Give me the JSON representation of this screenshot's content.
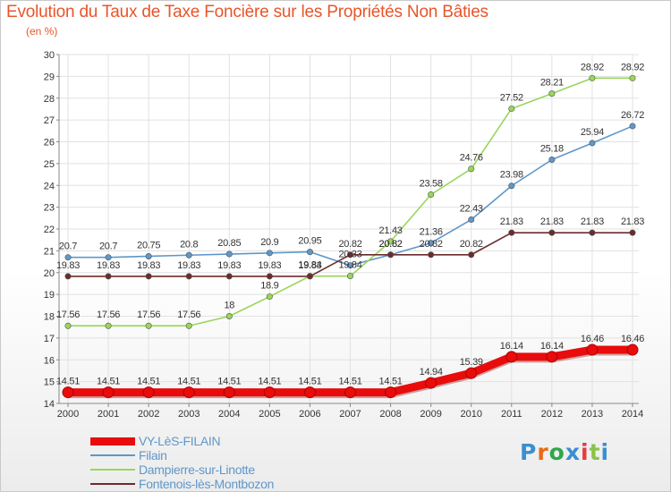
{
  "title": "Evolution du Taux de Taxe Foncière sur les Propriétés Non Bâties",
  "subtitle": "(en %)",
  "logo": {
    "text": "Proxiti",
    "colors": [
      "#3a8fd0",
      "#e86a1a",
      "#2fa64a",
      "#3a8fd0",
      "#e83a3a",
      "#8bc34a",
      "#3a8fd0"
    ]
  },
  "colors": {
    "title": "#e8552a",
    "grid": "#e1e1e1",
    "axis": "#888888",
    "label": "#333333"
  },
  "legend": [
    {
      "name": "VY-LèS-FILAIN",
      "color": "#e80c0c"
    },
    {
      "name": "Filain",
      "color": "#5f97c9"
    },
    {
      "name": "Dampierre-sur-Linotte",
      "color": "#99d65a"
    },
    {
      "name": "Fontenois-lès-Montbozon",
      "color": "#6b2c2c"
    }
  ],
  "chart_data": {
    "type": "line",
    "title": "Evolution du Taux de Taxe Foncière sur les Propriétés Non Bâties",
    "ylabel": "(en %)",
    "xlabel": "",
    "x": [
      "2000",
      "2001",
      "2002",
      "2003",
      "2004",
      "2005",
      "2006",
      "2007",
      "2008",
      "2009",
      "2010",
      "2011",
      "2012",
      "2013",
      "2014"
    ],
    "ylim": [
      14,
      30
    ],
    "yticks": [
      "14",
      "15",
      "16",
      "17",
      "18",
      "19",
      "20",
      "21",
      "22",
      "23",
      "24",
      "25",
      "26",
      "27",
      "28",
      "29",
      "30"
    ],
    "grid": true,
    "series": [
      {
        "name": "VY-LèS-FILAIN",
        "color": "#e80c0c",
        "values": [
          14.51,
          14.51,
          14.51,
          14.51,
          14.51,
          14.51,
          14.51,
          14.51,
          14.51,
          14.94,
          15.39,
          16.14,
          16.14,
          16.46,
          16.46
        ],
        "labels": [
          "14.51",
          "14.51",
          "14.51",
          "14.51",
          "14.51",
          "14.51",
          "14.51",
          "14.51",
          "14.51",
          "14.94",
          "15.39",
          "16.14",
          "16.14",
          "16.46",
          "16.46"
        ]
      },
      {
        "name": "Filain",
        "color": "#5f97c9",
        "values": [
          20.7,
          20.7,
          20.75,
          20.8,
          20.85,
          20.9,
          20.95,
          20.33,
          20.82,
          21.36,
          22.43,
          23.98,
          25.18,
          25.94,
          26.72
        ],
        "labels": [
          "20.7",
          "20.7",
          "20.75",
          "20.8",
          "20.85",
          "20.9",
          "20.95",
          "20.33",
          "20.82",
          "21.36",
          "22.43",
          "23.98",
          "25.18",
          "25.94",
          "26.72"
        ]
      },
      {
        "name": "Dampierre-sur-Linotte",
        "color": "#99d65a",
        "values": [
          17.56,
          17.56,
          17.56,
          17.56,
          18,
          18.9,
          19.84,
          19.84,
          21.43,
          23.58,
          24.76,
          27.52,
          28.21,
          28.92,
          28.92
        ],
        "labels": [
          "17.56",
          "17.56",
          "17.56",
          "17.56",
          "18",
          "18.9",
          "19.84",
          "19.84",
          "21.43",
          "23.58",
          "24.76",
          "27.52",
          "28.21",
          "28.92",
          "28.92"
        ]
      },
      {
        "name": "Fontenois-lès-Montbozon",
        "color": "#6b2c2c",
        "values": [
          19.83,
          19.83,
          19.83,
          19.83,
          19.83,
          19.83,
          19.83,
          20.82,
          20.82,
          20.82,
          20.82,
          21.83,
          21.83,
          21.83,
          21.83
        ],
        "labels": [
          "19.83",
          "19.83",
          "19.83",
          "19.83",
          "19.83",
          "19.83",
          "19.83",
          "20.82",
          "20.82",
          "20.82",
          "20.82",
          "21.83",
          "21.83",
          "21.83",
          "21.83"
        ]
      }
    ]
  }
}
